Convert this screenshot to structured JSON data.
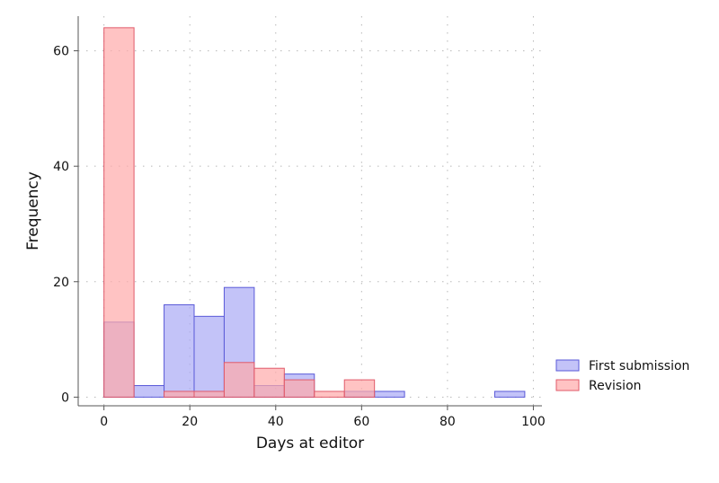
{
  "chart_data": {
    "type": "bar",
    "xlabel": "Days at editor",
    "ylabel": "Frequency",
    "xlim": [
      -6,
      102
    ],
    "ylim": [
      -1.5,
      66
    ],
    "x_ticks": [
      0,
      20,
      40,
      60,
      80,
      100
    ],
    "y_ticks": [
      0,
      20,
      40,
      60
    ],
    "grid": true,
    "legend_position": "right",
    "bin_width": 7,
    "series": [
      {
        "name": "First submission",
        "fill": "#aaaaf5",
        "stroke": "#5a5ad8",
        "bins": [
          {
            "x": 0,
            "y": 13
          },
          {
            "x": 7,
            "y": 2
          },
          {
            "x": 14,
            "y": 16
          },
          {
            "x": 21,
            "y": 14
          },
          {
            "x": 28,
            "y": 19
          },
          {
            "x": 35,
            "y": 2
          },
          {
            "x": 42,
            "y": 4
          },
          {
            "x": 56,
            "y": 1
          },
          {
            "x": 63,
            "y": 1
          },
          {
            "x": 91,
            "y": 1
          }
        ]
      },
      {
        "name": "Revision",
        "fill": "#ffaaaa",
        "stroke": "#e05a6a",
        "bins": [
          {
            "x": 0,
            "y": 64
          },
          {
            "x": 14,
            "y": 1
          },
          {
            "x": 21,
            "y": 1
          },
          {
            "x": 28,
            "y": 6
          },
          {
            "x": 35,
            "y": 5
          },
          {
            "x": 42,
            "y": 3
          },
          {
            "x": 49,
            "y": 1
          },
          {
            "x": 56,
            "y": 3
          }
        ]
      }
    ]
  }
}
